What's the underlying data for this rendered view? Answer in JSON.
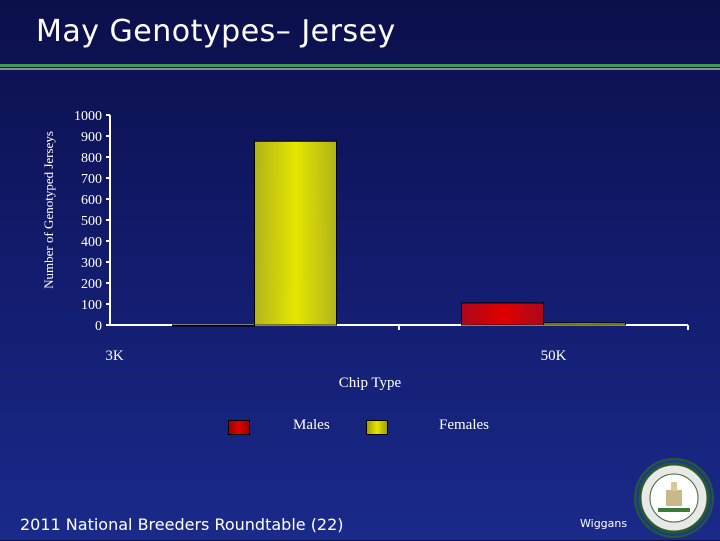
{
  "header": {
    "title": "May Genotypes– Jersey"
  },
  "footer": {
    "left": "2011 National Breeders Roundtable (22)",
    "right": "Wiggans"
  },
  "colors": {
    "males": "#e00000",
    "females": "#e6e600",
    "accent_rule": "#3a9a5a"
  },
  "chart_data": {
    "type": "bar",
    "categories": [
      "3K",
      "50K"
    ],
    "series": [
      {
        "name": "Males",
        "values": [
          0,
          105
        ]
      },
      {
        "name": "Females",
        "values": [
          875,
          10
        ]
      }
    ],
    "title": "May Genotypes– Jersey",
    "xlabel": "Chip Type",
    "ylabel": "Number of Genotyped Jerseys",
    "ylim": [
      0,
      1000
    ],
    "yticks": [
      "0",
      "100",
      "200",
      "300",
      "400",
      "500",
      "600",
      "700",
      "800",
      "900",
      "1000"
    ],
    "legend_position": "bottom",
    "grid": false
  }
}
